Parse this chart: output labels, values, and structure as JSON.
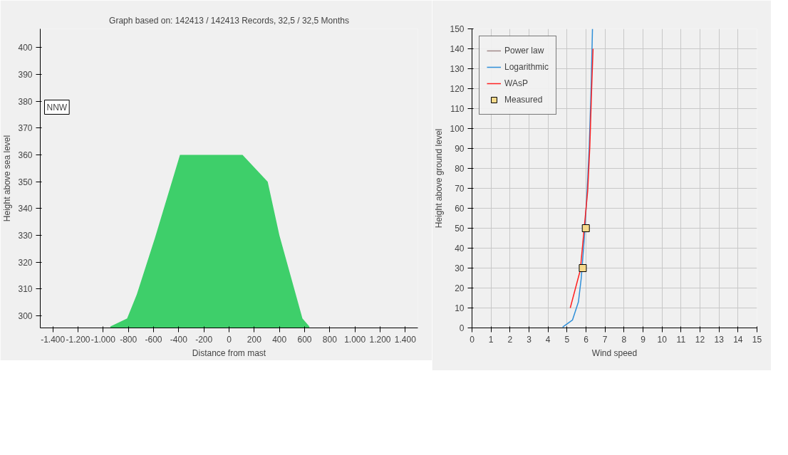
{
  "chart_data": [
    {
      "type": "area",
      "title": "Graph based on: 142413 / 142413 Records, 32,5 / 32,5 Months",
      "xlabel": "Distance from mast",
      "ylabel": "Height above sea level",
      "color": "#3ecf6a",
      "x": [
        -943,
        -810,
        -733,
        -589,
        -390,
        107,
        307,
        400,
        583,
        638
      ],
      "values": [
        296,
        299,
        308,
        329,
        360,
        360,
        350,
        330,
        299,
        296
      ],
      "xlim": [
        -1500,
        1500
      ],
      "ylim": [
        295.5,
        407
      ],
      "xticks": [
        {
          "value": -1400,
          "label": "-1.400"
        },
        {
          "value": -1200,
          "label": "-1.200"
        },
        {
          "value": -1000,
          "label": "-1.000"
        },
        -800,
        -600,
        -400,
        -200,
        0,
        200,
        400,
        600,
        800,
        {
          "value": 1000,
          "label": "1.000"
        },
        {
          "value": 1200,
          "label": "1.200"
        },
        {
          "value": 1400,
          "label": "1.400"
        }
      ],
      "yticks": [
        300,
        310,
        320,
        330,
        340,
        350,
        360,
        370,
        380,
        390,
        400
      ],
      "annotations": [
        "NNW"
      ]
    },
    {
      "type": "line",
      "xlabel": "Wind speed",
      "ylabel": "Height above ground level",
      "xlim": [
        0,
        15
      ],
      "ylim": [
        0,
        150
      ],
      "xticks": [
        0,
        1,
        2,
        3,
        4,
        5,
        6,
        7,
        8,
        9,
        10,
        11,
        12,
        13,
        14,
        15
      ],
      "yticks": [
        0,
        10,
        20,
        30,
        40,
        50,
        60,
        70,
        80,
        90,
        100,
        110,
        120,
        130,
        140,
        150
      ],
      "grid": true,
      "legend": "top left",
      "series": [
        {
          "name": "Power law",
          "color": "#a08888"
        },
        {
          "name": "Logarithmic",
          "color": "#2f8fd8",
          "x": [
            4.77,
            5.29,
            5.6,
            5.75,
            5.91,
            6.06,
            6.17,
            6.27,
            6.34
          ],
          "values": [
            0.4,
            4,
            13,
            25,
            45,
            69,
            91,
            121,
            150
          ]
        },
        {
          "name": "WAsP",
          "color": "#ff2020",
          "x": [
            5.17,
            5.7,
            6.09,
            6.2,
            6.3,
            6.37
          ],
          "values": [
            10,
            29,
            69,
            91,
            121,
            140
          ]
        },
        {
          "name": "Measured",
          "type": "scatter",
          "marker": "square",
          "color": "#f5d98b",
          "x": [
            5.83,
            5.99
          ],
          "values": [
            30,
            50
          ]
        }
      ]
    }
  ]
}
